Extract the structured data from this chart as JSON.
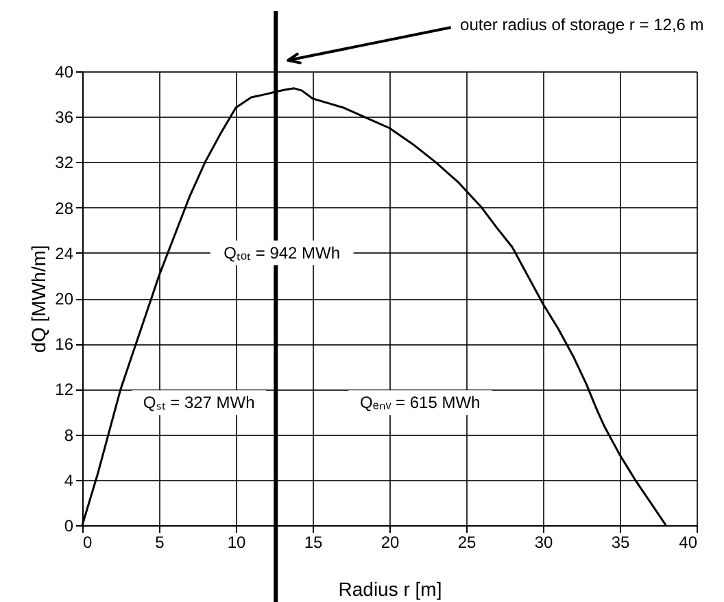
{
  "chart_data": {
    "type": "line",
    "xlabel": "Radius r [m]",
    "ylabel": "dQ [MWh/m]",
    "series": [
      {
        "color": "#000000",
        "x": [
          0,
          1,
          2.5,
          3.5,
          5,
          6,
          7,
          8,
          9,
          10,
          11,
          12,
          12.6,
          13.3,
          13.8,
          14.3,
          15,
          16,
          17,
          18,
          19,
          20,
          21.5,
          23,
          24.5,
          26,
          27,
          28,
          29,
          30,
          31,
          32,
          32.8,
          33.5,
          34,
          35,
          36,
          37,
          38
        ],
        "values": [
          0,
          4.5,
          12,
          16,
          22,
          25.5,
          29,
          32,
          34.5,
          36.8,
          37.7,
          38,
          38.2,
          38.4,
          38.5,
          38.3,
          37.6,
          37.2,
          36.8,
          36.2,
          35.6,
          35,
          33.6,
          32,
          30.2,
          28,
          26.2,
          24.5,
          22,
          19.5,
          17.3,
          14.8,
          12.5,
          10.2,
          8.7,
          6.2,
          4,
          2,
          0
        ]
      }
    ],
    "xlim": [
      0,
      40
    ],
    "xticks": [
      0,
      5,
      10,
      15,
      20,
      25,
      30,
      35,
      40
    ],
    "ylim": [
      0,
      40
    ],
    "yticks": [
      0,
      4,
      8,
      12,
      16,
      20,
      24,
      28,
      32,
      36,
      40
    ],
    "grid": true,
    "marker": "none",
    "line_style": "solid",
    "ref_lines": [
      {
        "axis": "x",
        "value": 12.6,
        "label": "outer radius of storage r = 12,6 m",
        "color": "#000000"
      }
    ],
    "annotations": [
      "Qₜₒₜ = 942 MWh",
      "Qₛₜ = 327 MWh",
      "Qₑₙᵥ = 615 MWh"
    ]
  }
}
